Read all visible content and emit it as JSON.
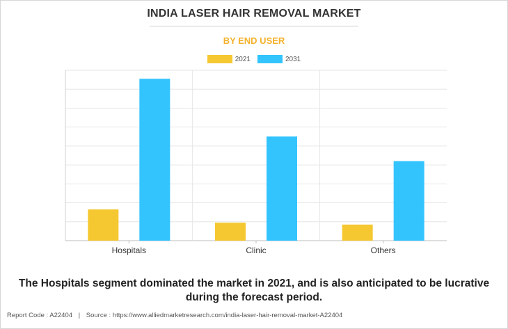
{
  "chart_data": {
    "type": "bar",
    "title": "INDIA LASER HAIR REMOVAL MARKET",
    "subtitle": "BY END USER",
    "categories": [
      "Hospitals",
      "Clinic",
      "Others"
    ],
    "series": [
      {
        "name": "2021",
        "color": "#f5c832",
        "values": [
          16.5,
          9.5,
          8.5
        ]
      },
      {
        "name": "2031",
        "color": "#33c4fe",
        "values": [
          85.5,
          55,
          42
        ]
      }
    ],
    "ylim": [
      0,
      90
    ],
    "grid": true,
    "legend_position": "top-center",
    "xlabel": "",
    "ylabel": ""
  },
  "caption": "The Hospitals segment dominated the market in 2021, and is also anticipated to be lucrative during the forecast period.",
  "footer": {
    "report_code": "Report Code : A22404",
    "separator": "|",
    "source": "Source : https://www.alliedmarketresearch.com/india-laser-hair-removal-market-A22404"
  }
}
